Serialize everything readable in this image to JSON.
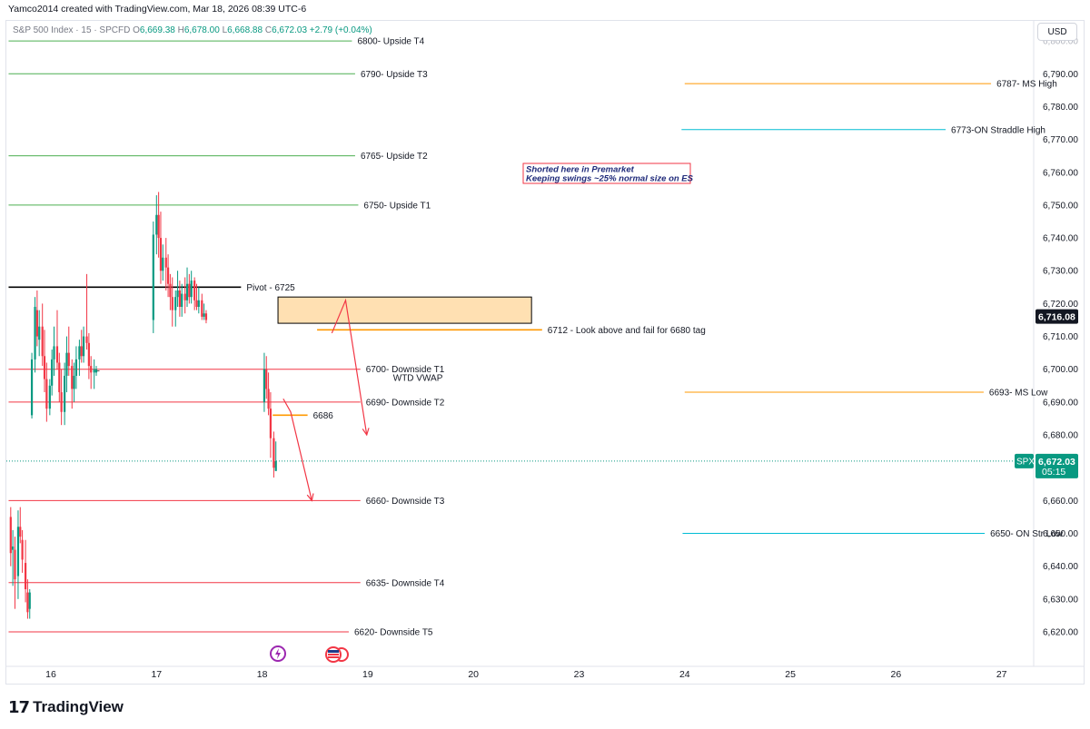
{
  "header": {
    "title": "Yamco2014 created with TradingView.com, Mar 18, 2026 08:39 UTC-6"
  },
  "ohlc": {
    "symbol": "S&P 500 Index · 15 · SPCFD",
    "o_label": "O",
    "o": "6,669.38",
    "h_label": "H",
    "h": "6,678.00",
    "l_label": "L",
    "l": "6,668.88",
    "c_label": "C",
    "c": "6,672.03",
    "change": "+2.79 (+0.04%)"
  },
  "currency_button": "USD",
  "branding": {
    "logo_mark": "17",
    "logo_text": "TradingView"
  },
  "colors": {
    "upside": "#4caf50",
    "downside": "#f23645",
    "pivot": "#000000",
    "orange": "#ff9800",
    "straddle": "#00bcd4",
    "candle_up": "#089981",
    "candle_down": "#f23645"
  },
  "chart_data": {
    "type": "candlestick",
    "y_axis": {
      "min": 6614,
      "max": 6800,
      "ticks": [
        6620,
        6630,
        6640,
        6650,
        6660,
        6670,
        6680,
        6690,
        6700,
        6710,
        6720,
        6730,
        6740,
        6750,
        6760,
        6770,
        6780,
        6790
      ],
      "tick_labels": [
        "6,620.00",
        "6,630.00",
        "6,640.00",
        "6,650.00",
        "6,660.00",
        "6,670.00",
        "6,680.00",
        "6,690.00",
        "6,700.00",
        "6,710.00",
        "6,720.00",
        "6,730.00",
        "6,740.00",
        "6,750.00",
        "6,760.00",
        "6,770.00",
        "6,780.00",
        "6,790.00"
      ]
    },
    "x_axis": {
      "ticks": [
        {
          "label": "16",
          "day": 16
        },
        {
          "label": "17",
          "day": 17
        },
        {
          "label": "18",
          "day": 18
        },
        {
          "label": "19",
          "day": 19
        },
        {
          "label": "20",
          "day": 20
        },
        {
          "label": "23",
          "day": 21
        },
        {
          "label": "24",
          "day": 22
        },
        {
          "label": "25",
          "day": 23
        },
        {
          "label": "26",
          "day": 24
        },
        {
          "label": "27",
          "day": 25
        }
      ]
    },
    "levels": [
      {
        "price": 6800,
        "label": "6800- Upside T4",
        "color": "#4caf50",
        "x_from": 15.6,
        "x_to": 18.85
      },
      {
        "price": 6790,
        "label": "6790- Upside T3",
        "color": "#4caf50",
        "x_from": 15.6,
        "x_to": 18.88
      },
      {
        "price": 6765,
        "label": "6765- Upside T2",
        "color": "#4caf50",
        "x_from": 15.6,
        "x_to": 18.88
      },
      {
        "price": 6750,
        "label": "6750- Upside T1",
        "color": "#4caf50",
        "x_from": 15.6,
        "x_to": 18.91
      },
      {
        "price": 6725,
        "label": "Pivot - 6725",
        "color": "#000000",
        "x_from": 15.6,
        "x_to": 17.8,
        "bold": true
      },
      {
        "price": 6712,
        "label": "6712 - Look above and fail for 6680 tag",
        "color": "#ff9800",
        "x_from": 18.52,
        "x_to": 20.65
      },
      {
        "price": 6700,
        "label": "6700- Downside T1",
        "color": "#f23645",
        "x_from": 15.6,
        "x_to": 18.93
      },
      {
        "price": 6690,
        "label": "6690- Downside T2",
        "color": "#f23645",
        "x_from": 15.6,
        "x_to": 18.93
      },
      {
        "price": 6660,
        "label": "6660- Downside T3",
        "color": "#f23645",
        "x_from": 15.6,
        "x_to": 18.93
      },
      {
        "price": 6635,
        "label": "6635- Downside T4",
        "color": "#f23645",
        "x_from": 15.6,
        "x_to": 18.93
      },
      {
        "price": 6620,
        "label": "6620- Downside T5",
        "color": "#f23645",
        "x_from": 15.6,
        "x_to": 18.82
      },
      {
        "price": 6787,
        "label": "6787- MS High",
        "color": "#ff9800",
        "x_from": 22.0,
        "x_to": 24.9
      },
      {
        "price": 6773,
        "label": "6773-ON Straddle High",
        "color": "#00bcd4",
        "x_from": 21.97,
        "x_to": 24.47
      },
      {
        "price": 6693,
        "label": "6693- MS Low",
        "color": "#ff9800",
        "x_from": 22.0,
        "x_to": 24.83
      },
      {
        "price": 6650,
        "label": "6650- ON Str Low",
        "color": "#00bcd4",
        "x_from": 21.98,
        "x_to": 24.84
      },
      {
        "price": 6686,
        "label": "6686",
        "color": "#ff9800",
        "x_from": 18.1,
        "x_to": 18.43
      }
    ],
    "vwap_label": "WTD VWAP",
    "note": {
      "lines": [
        "Shorted here in Premarket",
        "Keeping swings ~25% normal size on ES"
      ]
    },
    "zone": {
      "price_top": 6722,
      "price_bottom": 6714,
      "x_from": 18.15,
      "x_to": 20.55
    },
    "arrows": [
      {
        "points": [
          [
            18.66,
            6711
          ],
          [
            18.79,
            6721
          ],
          [
            18.99,
            6680
          ]
        ]
      },
      {
        "points": [
          [
            18.2,
            6691
          ],
          [
            18.27,
            6687
          ],
          [
            18.47,
            6660
          ]
        ]
      }
    ],
    "price_label": {
      "value": 6716.08,
      "text": "6,716.08"
    },
    "last_price": {
      "symbol": "SPX",
      "value": 6672.03,
      "text": "6,672.03",
      "countdown": "05:15"
    },
    "candles": [
      [
        15.62,
        6655,
        6658,
        6640,
        6644
      ],
      [
        15.64,
        6645,
        6651,
        6634,
        6646
      ],
      [
        15.66,
        6645,
        6649,
        6627,
        6636
      ],
      [
        15.69,
        6637,
        6657,
        6630,
        6652
      ],
      [
        15.71,
        6652,
        6658,
        6647,
        6649
      ],
      [
        15.73,
        6648,
        6651,
        6638,
        6642
      ],
      [
        15.76,
        6641,
        6648,
        6629,
        6633
      ],
      [
        15.78,
        6632,
        6636,
        6624,
        6626
      ],
      [
        15.8,
        6627,
        6633,
        6624,
        6632
      ],
      [
        15.82,
        6686,
        6705,
        6685,
        6703
      ],
      [
        15.85,
        6703,
        6722,
        6699,
        6719
      ],
      [
        15.87,
        6718,
        6724,
        6707,
        6710
      ],
      [
        15.89,
        6709,
        6718,
        6704,
        6713
      ],
      [
        15.92,
        6713,
        6720,
        6701,
        6704
      ],
      [
        15.94,
        6704,
        6712,
        6693,
        6697
      ],
      [
        15.96,
        6697,
        6702,
        6684,
        6688
      ],
      [
        15.99,
        6688,
        6697,
        6686,
        6695
      ],
      [
        16.01,
        6695,
        6706,
        6692,
        6703
      ],
      [
        16.03,
        6703,
        6713,
        6698,
        6707
      ],
      [
        16.06,
        6707,
        6718,
        6700,
        6702
      ],
      [
        16.08,
        6702,
        6705,
        6690,
        6693
      ],
      [
        16.1,
        6693,
        6700,
        6683,
        6687
      ],
      [
        16.13,
        6687,
        6702,
        6683,
        6698
      ],
      [
        16.15,
        6698,
        6710,
        6693,
        6705
      ],
      [
        16.17,
        6705,
        6713,
        6698,
        6701
      ],
      [
        16.2,
        6701,
        6703,
        6688,
        6694
      ],
      [
        16.22,
        6694,
        6702,
        6690,
        6698
      ],
      [
        16.24,
        6698,
        6707,
        6694,
        6703
      ],
      [
        16.27,
        6703,
        6709,
        6698,
        6707
      ],
      [
        16.29,
        6707,
        6712,
        6702,
        6704
      ],
      [
        16.31,
        6704,
        6713,
        6702,
        6710
      ],
      [
        16.34,
        6710,
        6729,
        6706,
        6708
      ],
      [
        16.36,
        6708,
        6711,
        6697,
        6701
      ],
      [
        16.38,
        6701,
        6704,
        6694,
        6699
      ],
      [
        16.41,
        6699,
        6703,
        6694,
        6700
      ],
      [
        16.43,
        6699,
        6701,
        6698,
        6700
      ],
      [
        16.97,
        6715,
        6745,
        6711,
        6741
      ],
      [
        17.0,
        6741,
        6753,
        6735,
        6747
      ],
      [
        17.02,
        6747,
        6754,
        6734,
        6740
      ],
      [
        17.04,
        6740,
        6748,
        6726,
        6730
      ],
      [
        17.06,
        6730,
        6738,
        6727,
        6734
      ],
      [
        17.09,
        6734,
        6740,
        6724,
        6731
      ],
      [
        17.11,
        6731,
        6735,
        6722,
        6726
      ],
      [
        17.13,
        6726,
        6729,
        6718,
        6722
      ],
      [
        17.15,
        6722,
        6728,
        6713,
        6718
      ],
      [
        17.18,
        6718,
        6724,
        6713,
        6722
      ],
      [
        17.2,
        6722,
        6730,
        6719,
        6724
      ],
      [
        17.22,
        6724,
        6727,
        6716,
        6719
      ],
      [
        17.24,
        6719,
        6726,
        6716,
        6723
      ],
      [
        17.27,
        6723,
        6728,
        6717,
        6721
      ],
      [
        17.29,
        6721,
        6731,
        6719,
        6726
      ],
      [
        17.31,
        6726,
        6729,
        6720,
        6722
      ],
      [
        17.33,
        6722,
        6730,
        6720,
        6727
      ],
      [
        17.36,
        6727,
        6728,
        6718,
        6721
      ],
      [
        17.38,
        6721,
        6726,
        6718,
        6719
      ],
      [
        17.4,
        6719,
        6725,
        6717,
        6721
      ],
      [
        17.43,
        6721,
        6723,
        6715,
        6716
      ],
      [
        17.45,
        6716,
        6720,
        6715,
        6717
      ],
      [
        17.47,
        6717,
        6718,
        6714,
        6715
      ],
      [
        18.02,
        6690,
        6705,
        6687,
        6700
      ],
      [
        18.04,
        6700,
        6704,
        6691,
        6694
      ],
      [
        18.06,
        6694,
        6699,
        6686,
        6688
      ],
      [
        18.08,
        6688,
        6693,
        6673,
        6679
      ],
      [
        18.11,
        6679,
        6681,
        6667,
        6670
      ],
      [
        18.13,
        6669,
        6678,
        6669,
        6672
      ]
    ]
  }
}
